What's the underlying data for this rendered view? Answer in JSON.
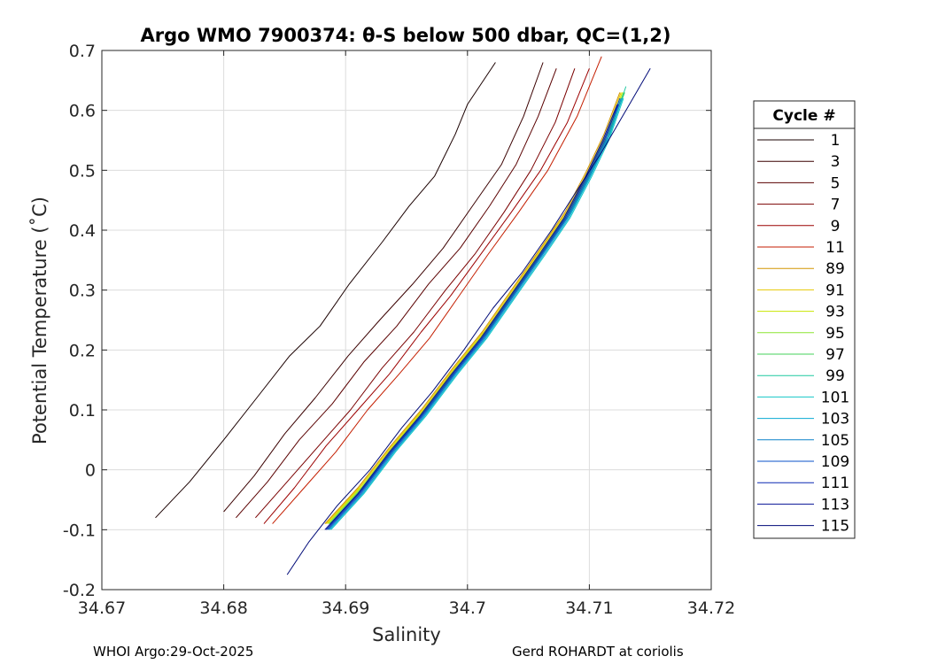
{
  "chart_data": {
    "type": "line",
    "title": "Argo WMO 7900374: θ-S below 500 dbar,  QC=(1,2)",
    "xlabel": "Salinity",
    "ylabel": "Potential Temperature (˚C)",
    "xlim": [
      34.67,
      34.72
    ],
    "ylim": [
      -0.2,
      0.7
    ],
    "x_ticks": [
      "34.67",
      "34.68",
      "34.69",
      "34.7",
      "34.71",
      "34.72"
    ],
    "y_ticks": [
      "-0.2",
      "-0.1",
      "0",
      "0.1",
      "0.2",
      "0.3",
      "0.4",
      "0.5",
      "0.6",
      "0.7"
    ],
    "grid": true,
    "legend": {
      "title": "Cycle #",
      "position": "right"
    },
    "series": [
      {
        "name": "1",
        "color": "#1a0000",
        "x": [
          34.6744,
          34.6772,
          34.68,
          34.6827,
          34.6854,
          34.6879,
          34.6903,
          34.693,
          34.6952,
          34.6973,
          34.699,
          34.7,
          34.7023
        ],
        "y": [
          -0.08,
          -0.02,
          0.05,
          0.12,
          0.19,
          0.24,
          0.31,
          0.38,
          0.44,
          0.49,
          0.56,
          0.61,
          0.68
        ]
      },
      {
        "name": "3",
        "color": "#3a0000",
        "x": [
          34.68,
          34.6825,
          34.685,
          34.6875,
          34.6902,
          34.6928,
          34.6955,
          34.698,
          34.7004,
          34.7028,
          34.7046,
          34.7062
        ],
        "y": [
          -0.07,
          -0.01,
          0.06,
          0.12,
          0.19,
          0.25,
          0.31,
          0.37,
          0.44,
          0.51,
          0.59,
          0.68
        ]
      },
      {
        "name": "5",
        "color": "#5a0000",
        "x": [
          34.681,
          34.6836,
          34.6862,
          34.6889,
          34.6915,
          34.6942,
          34.6968,
          34.6994,
          34.7018,
          34.704,
          34.7058,
          34.7073
        ],
        "y": [
          -0.08,
          -0.02,
          0.05,
          0.11,
          0.18,
          0.24,
          0.31,
          0.37,
          0.44,
          0.51,
          0.59,
          0.67
        ]
      },
      {
        "name": "7",
        "color": "#7a0000",
        "x": [
          34.6826,
          34.6852,
          34.6878,
          34.6904,
          34.693,
          34.6956,
          34.6982,
          34.7006,
          34.703,
          34.7052,
          34.7072,
          34.7088
        ],
        "y": [
          -0.08,
          -0.02,
          0.04,
          0.1,
          0.17,
          0.23,
          0.3,
          0.36,
          0.43,
          0.5,
          0.58,
          0.67
        ]
      },
      {
        "name": "9",
        "color": "#9c0000",
        "x": [
          34.6833,
          34.6858,
          34.6884,
          34.691,
          34.6936,
          34.6962,
          34.6986,
          34.7011,
          34.7036,
          34.706,
          34.7082,
          34.71
        ],
        "y": [
          -0.09,
          -0.03,
          0.04,
          0.1,
          0.16,
          0.23,
          0.29,
          0.36,
          0.43,
          0.5,
          0.58,
          0.67
        ]
      },
      {
        "name": "11",
        "color": "#c41e00",
        "x": [
          34.684,
          34.6866,
          34.6892,
          34.6918,
          34.6944,
          34.6969,
          34.6993,
          34.7017,
          34.7042,
          34.7066,
          34.709,
          34.711
        ],
        "y": [
          -0.09,
          -0.03,
          0.03,
          0.1,
          0.16,
          0.22,
          0.29,
          0.36,
          0.43,
          0.5,
          0.59,
          0.69
        ]
      },
      {
        "name": "89",
        "color": "#d29600",
        "x": [
          34.6883,
          34.691,
          34.6937,
          34.6962,
          34.6988,
          34.7012,
          34.7036,
          34.706,
          34.708,
          34.7098,
          34.7112,
          34.7125
        ],
        "y": [
          -0.09,
          -0.03,
          0.04,
          0.1,
          0.17,
          0.23,
          0.3,
          0.37,
          0.43,
          0.5,
          0.56,
          0.63
        ]
      },
      {
        "name": "91",
        "color": "#e6c800",
        "x": [
          34.6884,
          34.6911,
          34.6938,
          34.6963,
          34.6989,
          34.7013,
          34.7037,
          34.7061,
          34.7081,
          34.7099,
          34.7113,
          34.7126
        ],
        "y": [
          -0.09,
          -0.03,
          0.04,
          0.1,
          0.17,
          0.23,
          0.3,
          0.37,
          0.43,
          0.5,
          0.56,
          0.63
        ]
      },
      {
        "name": "93",
        "color": "#c8e600",
        "x": [
          34.6885,
          34.6912,
          34.6939,
          34.6964,
          34.699,
          34.7014,
          34.7038,
          34.7062,
          34.7082,
          34.71,
          34.7114,
          34.7127
        ],
        "y": [
          -0.09,
          -0.03,
          0.04,
          0.1,
          0.17,
          0.23,
          0.3,
          0.37,
          0.43,
          0.5,
          0.56,
          0.63
        ]
      },
      {
        "name": "95",
        "color": "#8ce632",
        "x": [
          34.6886,
          34.6913,
          34.694,
          34.6965,
          34.6991,
          34.7015,
          34.7039,
          34.7063,
          34.7083,
          34.7101,
          34.7115,
          34.7128
        ],
        "y": [
          -0.09,
          -0.03,
          0.04,
          0.1,
          0.17,
          0.23,
          0.3,
          0.37,
          0.43,
          0.5,
          0.56,
          0.63
        ]
      },
      {
        "name": "97",
        "color": "#46d25a",
        "x": [
          34.6887,
          34.6914,
          34.6941,
          34.6966,
          34.6992,
          34.7016,
          34.704,
          34.7064,
          34.7084,
          34.7102,
          34.7116,
          34.7129
        ],
        "y": [
          -0.09,
          -0.03,
          0.04,
          0.1,
          0.17,
          0.23,
          0.3,
          0.37,
          0.43,
          0.5,
          0.56,
          0.63
        ]
      },
      {
        "name": "99",
        "color": "#1ec8a0",
        "x": [
          34.6888,
          34.6915,
          34.6942,
          34.6967,
          34.6993,
          34.7017,
          34.7041,
          34.7065,
          34.7085,
          34.7103,
          34.7117,
          34.713
        ],
        "y": [
          -0.09,
          -0.03,
          0.04,
          0.1,
          0.17,
          0.23,
          0.3,
          0.37,
          0.43,
          0.5,
          0.56,
          0.64
        ]
      },
      {
        "name": "101",
        "color": "#14c8c8",
        "x": [
          34.6888,
          34.6915,
          34.6941,
          34.6966,
          34.6992,
          34.7016,
          34.704,
          34.7064,
          34.7084,
          34.7102,
          34.7116,
          34.7128
        ],
        "y": [
          -0.1,
          -0.04,
          0.03,
          0.09,
          0.16,
          0.22,
          0.29,
          0.36,
          0.42,
          0.49,
          0.55,
          0.62
        ]
      },
      {
        "name": "103",
        "color": "#0aaad2",
        "x": [
          34.6887,
          34.6914,
          34.694,
          34.6965,
          34.6991,
          34.7015,
          34.7039,
          34.7063,
          34.7083,
          34.7101,
          34.7115,
          34.7127
        ],
        "y": [
          -0.1,
          -0.04,
          0.03,
          0.09,
          0.16,
          0.22,
          0.29,
          0.36,
          0.42,
          0.49,
          0.55,
          0.62
        ]
      },
      {
        "name": "105",
        "color": "#0a82c8",
        "x": [
          34.6886,
          34.6913,
          34.6939,
          34.6964,
          34.699,
          34.7014,
          34.7038,
          34.7062,
          34.7082,
          34.71,
          34.7114,
          34.7126
        ],
        "y": [
          -0.1,
          -0.04,
          0.03,
          0.09,
          0.16,
          0.22,
          0.29,
          0.36,
          0.42,
          0.49,
          0.55,
          0.62
        ]
      },
      {
        "name": "109",
        "color": "#0a50c8",
        "x": [
          34.6885,
          34.6912,
          34.6938,
          34.6963,
          34.6989,
          34.7013,
          34.7037,
          34.7061,
          34.7081,
          34.7099,
          34.7113,
          34.7125
        ],
        "y": [
          -0.1,
          -0.04,
          0.03,
          0.09,
          0.16,
          0.22,
          0.29,
          0.36,
          0.42,
          0.49,
          0.55,
          0.62
        ]
      },
      {
        "name": "111",
        "color": "#0a28b4",
        "x": [
          34.6884,
          34.6911,
          34.6937,
          34.6962,
          34.6988,
          34.7012,
          34.7036,
          34.706,
          34.708,
          34.7098,
          34.7112,
          34.7124
        ],
        "y": [
          -0.1,
          -0.04,
          0.03,
          0.09,
          0.16,
          0.22,
          0.29,
          0.36,
          0.42,
          0.49,
          0.55,
          0.61
        ]
      },
      {
        "name": "113",
        "color": "#0a1496",
        "x": [
          34.6883,
          34.691,
          34.6936,
          34.6961,
          34.6987,
          34.7011,
          34.7035,
          34.7059,
          34.7079,
          34.7097,
          34.7111,
          34.7123
        ],
        "y": [
          -0.1,
          -0.04,
          0.03,
          0.09,
          0.16,
          0.22,
          0.29,
          0.36,
          0.42,
          0.49,
          0.55,
          0.61
        ]
      },
      {
        "name": "115",
        "color": "#000a78",
        "x": [
          34.6852,
          34.687,
          34.6893,
          34.692,
          34.6946,
          34.6971,
          34.6997,
          34.7021,
          34.7045,
          34.7069,
          34.7091,
          34.711,
          34.713,
          34.715
        ],
        "y": [
          -0.175,
          -0.12,
          -0.06,
          0.0,
          0.07,
          0.13,
          0.2,
          0.27,
          0.33,
          0.4,
          0.47,
          0.53,
          0.6,
          0.67
        ]
      }
    ]
  },
  "footer": {
    "left": "WHOI Argo:29-Oct-2025",
    "right": "Gerd ROHARDT at coriolis"
  }
}
